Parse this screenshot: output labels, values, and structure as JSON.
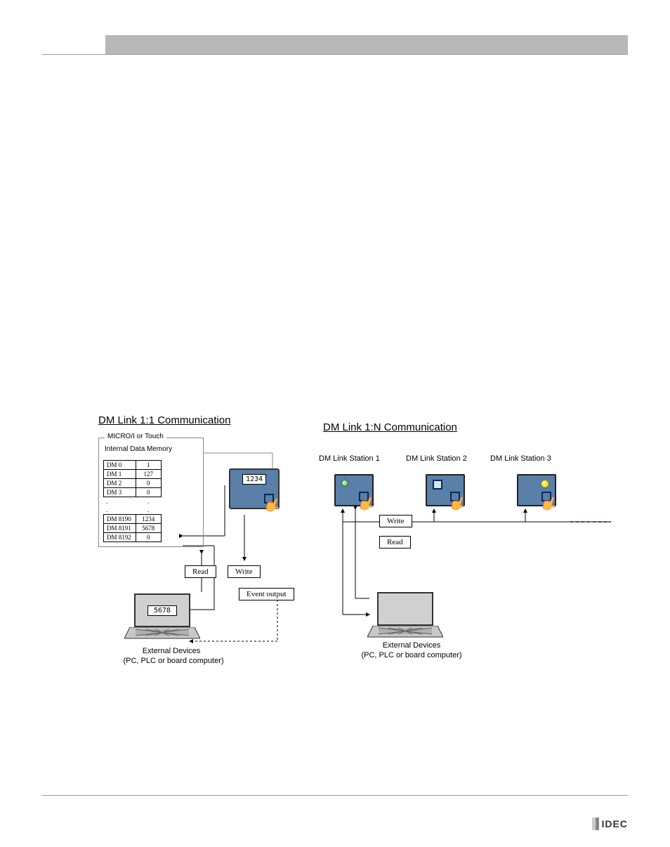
{
  "left": {
    "title": "DM Link 1:1 Communication",
    "fieldset_label": "MICRO/I or Touch",
    "mem_label": "Internal Data Memory",
    "rows": [
      {
        "addr": "DM    0",
        "val": "1"
      },
      {
        "addr": "DM    1",
        "val": "127"
      },
      {
        "addr": "DM    2",
        "val": "0"
      },
      {
        "addr": "DM    3",
        "val": "0"
      },
      {
        "addr": ".",
        "val": "."
      },
      {
        "addr": ".",
        "val": "."
      },
      {
        "addr": "DM  8190",
        "val": "1234"
      },
      {
        "addr": "DM  8191",
        "val": "5678"
      },
      {
        "addr": "DM  8192",
        "val": "0"
      }
    ],
    "screen_value": "1234",
    "laptop_value": "5678",
    "read_label": "Read",
    "write_label": "Write",
    "event_label": "Event output",
    "caption1": "External Devices",
    "caption2": "(PC, PLC or board computer)"
  },
  "right": {
    "title": "DM Link 1:N Communication",
    "station1": "DM Link Station 1",
    "station2": "DM Link Station 2",
    "station3": "DM Link Station 3",
    "write_label": "Write",
    "read_label": "Read",
    "caption1": "External Devices",
    "caption2": "(PC, PLC or board computer)"
  },
  "footer_logo": "IDEC",
  "colors": {
    "screen_bg": "#5a7fa8",
    "header_gray": "#b8b8b8"
  }
}
